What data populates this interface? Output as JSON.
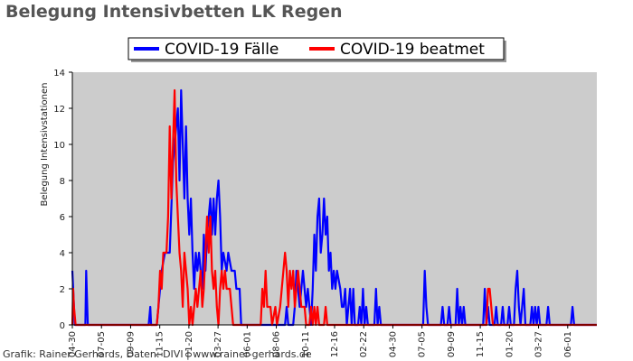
{
  "title": "Belegung Intensivbetten LK Regen",
  "credit": "Grafik: Rainer Gerhards, Daten: DIVI | www.rainer-gerhards.de",
  "chart_data": {
    "type": "line",
    "title": "Belegung Intensivbetten LK Regen",
    "xlabel": "",
    "ylabel": "Belegung Intensivstationen",
    "ylim": [
      0,
      14
    ],
    "yticks": [
      0,
      2,
      4,
      6,
      8,
      10,
      12,
      14
    ],
    "grid": false,
    "background": "#cccccc",
    "legend_position": "top",
    "x_tick_labels": [
      "04-30",
      "07-05",
      "09-09",
      "11-15",
      "01-20",
      "03-27",
      "06-01",
      "08-06",
      "10-11",
      "12-16",
      "02-22",
      "04-30",
      "07-05",
      "09-09",
      "11-15",
      "01-20",
      "03-27",
      "06-01"
    ],
    "series": [
      {
        "name": "COVID-19 Fälle",
        "color": "#0000ff",
        "points": [
          [
            0,
            3
          ],
          [
            1.5,
            0
          ],
          [
            8,
            0
          ],
          [
            8.5,
            3
          ],
          [
            9.5,
            0
          ],
          [
            47,
            0
          ],
          [
            48,
            1
          ],
          [
            48.5,
            0
          ],
          [
            52,
            0
          ],
          [
            53,
            1
          ],
          [
            55,
            3
          ],
          [
            57,
            4
          ],
          [
            60,
            4
          ],
          [
            62,
            9
          ],
          [
            65,
            12
          ],
          [
            66,
            8
          ],
          [
            67,
            13
          ],
          [
            68,
            10
          ],
          [
            69,
            7
          ],
          [
            70,
            11
          ],
          [
            71,
            7
          ],
          [
            72,
            5
          ],
          [
            73,
            7
          ],
          [
            74,
            4
          ],
          [
            75,
            2
          ],
          [
            76,
            4
          ],
          [
            77,
            3
          ],
          [
            78,
            4
          ],
          [
            79,
            3
          ],
          [
            80,
            2
          ],
          [
            81,
            5
          ],
          [
            82,
            3
          ],
          [
            83,
            5
          ],
          [
            84,
            6
          ],
          [
            85,
            7
          ],
          [
            86,
            5
          ],
          [
            87,
            7
          ],
          [
            88,
            5
          ],
          [
            89,
            7
          ],
          [
            90,
            8
          ],
          [
            91,
            6
          ],
          [
            92,
            3
          ],
          [
            93,
            4
          ],
          [
            95,
            3
          ],
          [
            96,
            4
          ],
          [
            98,
            3
          ],
          [
            100,
            3
          ],
          [
            101,
            2
          ],
          [
            103,
            2
          ],
          [
            104,
            0
          ],
          [
            131,
            0
          ],
          [
            132,
            1
          ],
          [
            133,
            0
          ],
          [
            136,
            0
          ],
          [
            137,
            1
          ],
          [
            138,
            3
          ],
          [
            139,
            2
          ],
          [
            140,
            1
          ],
          [
            141,
            2
          ],
          [
            142,
            3
          ],
          [
            143,
            2
          ],
          [
            144,
            1
          ],
          [
            145,
            2
          ],
          [
            146,
            1
          ],
          [
            147,
            0
          ],
          [
            148,
            2
          ],
          [
            149,
            5
          ],
          [
            150,
            3
          ],
          [
            151,
            6
          ],
          [
            152,
            7
          ],
          [
            153,
            4
          ],
          [
            154,
            5
          ],
          [
            155,
            7
          ],
          [
            156,
            5
          ],
          [
            157,
            6
          ],
          [
            158,
            3
          ],
          [
            159,
            4
          ],
          [
            160,
            2
          ],
          [
            161,
            3
          ],
          [
            162,
            2
          ],
          [
            163,
            3
          ],
          [
            165,
            2
          ],
          [
            166,
            1
          ],
          [
            167,
            1
          ],
          [
            168,
            2
          ],
          [
            169,
            0
          ],
          [
            170,
            1
          ],
          [
            171,
            2
          ],
          [
            172,
            0
          ],
          [
            173,
            2
          ],
          [
            174,
            0
          ],
          [
            176,
            0
          ],
          [
            177,
            1
          ],
          [
            178,
            0
          ],
          [
            179,
            2
          ],
          [
            180,
            0
          ],
          [
            181,
            1
          ],
          [
            182,
            0
          ],
          [
            186,
            0
          ],
          [
            187,
            2
          ],
          [
            188,
            0
          ],
          [
            189,
            1
          ],
          [
            190,
            0
          ],
          [
            216,
            0
          ],
          [
            217,
            3
          ],
          [
            218,
            1
          ],
          [
            219,
            0
          ],
          [
            227,
            0
          ],
          [
            228,
            1
          ],
          [
            229,
            0
          ],
          [
            231,
            0
          ],
          [
            232,
            1
          ],
          [
            233,
            0
          ],
          [
            236,
            0
          ],
          [
            237,
            2
          ],
          [
            238,
            0
          ],
          [
            239,
            1
          ],
          [
            240,
            0
          ],
          [
            241,
            1
          ],
          [
            242,
            0
          ],
          [
            253,
            0
          ],
          [
            254,
            2
          ],
          [
            255,
            0
          ],
          [
            256,
            1
          ],
          [
            257,
            0
          ],
          [
            260,
            0
          ],
          [
            261,
            1
          ],
          [
            262,
            0
          ],
          [
            264,
            0
          ],
          [
            265,
            1
          ],
          [
            266,
            0
          ],
          [
            268,
            0
          ],
          [
            269,
            1
          ],
          [
            270,
            0
          ],
          [
            272,
            0
          ],
          [
            273,
            2
          ],
          [
            274,
            3
          ],
          [
            275,
            1
          ],
          [
            276,
            0
          ],
          [
            277,
            1
          ],
          [
            278,
            2
          ],
          [
            279,
            0
          ],
          [
            282,
            0
          ],
          [
            283,
            1
          ],
          [
            284,
            0
          ],
          [
            285,
            1
          ],
          [
            286,
            0
          ],
          [
            287,
            1
          ],
          [
            288,
            0
          ],
          [
            292,
            0
          ],
          [
            293,
            1
          ],
          [
            294,
            0
          ],
          [
            307,
            0
          ],
          [
            308,
            1
          ],
          [
            309,
            0
          ],
          [
            323,
            0
          ]
        ]
      },
      {
        "name": "COVID-19 beatmet",
        "color": "#ff0000",
        "points": [
          [
            0,
            0
          ],
          [
            0.5,
            2
          ],
          [
            1,
            1
          ],
          [
            2,
            0
          ],
          [
            46,
            0
          ],
          [
            52,
            0
          ],
          [
            53,
            1
          ],
          [
            54,
            3
          ],
          [
            55,
            2
          ],
          [
            56,
            4
          ],
          [
            58,
            4
          ],
          [
            59,
            6
          ],
          [
            60,
            11
          ],
          [
            61,
            7
          ],
          [
            62,
            10
          ],
          [
            63,
            13
          ],
          [
            64,
            8
          ],
          [
            65,
            6
          ],
          [
            66,
            4
          ],
          [
            67,
            3
          ],
          [
            68,
            1
          ],
          [
            69,
            4
          ],
          [
            70,
            3
          ],
          [
            71,
            2
          ],
          [
            72,
            0
          ],
          [
            73,
            1
          ],
          [
            74,
            0
          ],
          [
            76,
            2
          ],
          [
            77,
            1
          ],
          [
            78,
            2
          ],
          [
            79,
            3
          ],
          [
            80,
            1
          ],
          [
            81,
            2
          ],
          [
            82,
            4
          ],
          [
            83,
            6
          ],
          [
            84,
            4
          ],
          [
            85,
            6
          ],
          [
            86,
            3
          ],
          [
            87,
            2
          ],
          [
            88,
            3
          ],
          [
            89,
            1
          ],
          [
            90,
            0
          ],
          [
            91,
            2
          ],
          [
            92,
            3
          ],
          [
            93,
            2
          ],
          [
            94,
            3
          ],
          [
            95,
            2
          ],
          [
            97,
            2
          ],
          [
            98,
            1
          ],
          [
            99,
            0
          ],
          [
            116,
            0
          ],
          [
            117,
            2
          ],
          [
            118,
            1
          ],
          [
            119,
            3
          ],
          [
            120,
            1
          ],
          [
            122,
            1
          ],
          [
            123,
            0
          ],
          [
            125,
            1
          ],
          [
            126,
            0
          ],
          [
            128,
            1
          ],
          [
            129,
            2
          ],
          [
            130,
            3
          ],
          [
            131,
            4
          ],
          [
            132,
            3
          ],
          [
            133,
            1
          ],
          [
            134,
            3
          ],
          [
            135,
            2
          ],
          [
            136,
            3
          ],
          [
            137,
            1
          ],
          [
            138,
            2
          ],
          [
            139,
            3
          ],
          [
            140,
            2
          ],
          [
            141,
            1
          ],
          [
            143,
            1
          ],
          [
            144,
            0
          ],
          [
            146,
            0
          ],
          [
            147,
            1
          ],
          [
            148,
            0
          ],
          [
            149,
            1
          ],
          [
            150,
            0
          ],
          [
            151,
            1
          ],
          [
            152,
            0
          ],
          [
            155,
            0
          ],
          [
            156,
            1
          ],
          [
            157,
            0
          ],
          [
            255,
            0
          ],
          [
            256,
            2
          ],
          [
            257,
            2
          ],
          [
            258,
            1
          ],
          [
            259,
            0
          ],
          [
            323,
            0
          ]
        ]
      }
    ]
  }
}
